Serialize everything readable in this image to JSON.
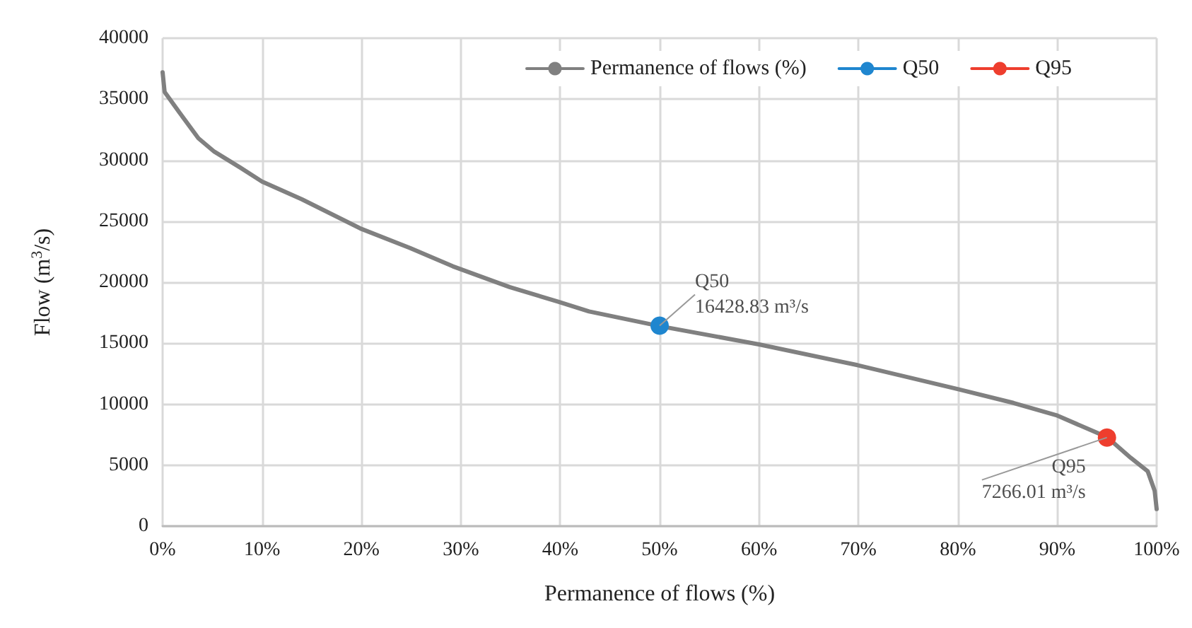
{
  "chart_data": {
    "type": "line",
    "xlabel": "Permanence of flows (%)",
    "ylabel": "Flow (m$^{3}$/s)",
    "series": [
      {
        "name": "Permanence of flows (%)",
        "color": "#808080",
        "marker": "none",
        "x": [
          0,
          0.2,
          1.7,
          3.6,
          5.2,
          7.8,
          10,
          14,
          19.9,
          24.9,
          29.2,
          34.9,
          39.8,
          42.9,
          50,
          60,
          69.9,
          79.9,
          85.6,
          89.9,
          95,
          97.4,
          99.1,
          99.8,
          100
        ],
        "values": [
          37200,
          35600,
          33900,
          31800,
          30700,
          29400,
          28250,
          26800,
          24400,
          22800,
          21300,
          19600,
          18400,
          17600,
          16400,
          14900,
          13200,
          11250,
          10100,
          9100,
          7300,
          5600,
          4500,
          2900,
          1400
        ]
      },
      {
        "name": "Q50",
        "color": "#1f86cf",
        "marker": "circle",
        "x": [
          50
        ],
        "values": [
          16428.83
        ]
      },
      {
        "name": "Q95",
        "color": "#ee3e2e",
        "marker": "circle",
        "x": [
          95
        ],
        "values": [
          7266.01
        ]
      }
    ],
    "annotations": [
      {
        "text": "Q50\n16428.83 m³/s",
        "x": 50,
        "y": 16428.83
      },
      {
        "text": "Q95\n7266.01 m³/s",
        "x": 95,
        "y": 7266.01
      }
    ],
    "xlim": [
      0,
      100
    ],
    "xticks": [
      {
        "value": 0,
        "label": "0%"
      },
      {
        "value": 10,
        "label": "10%"
      },
      {
        "value": 20,
        "label": "20%"
      },
      {
        "value": 30,
        "label": "30%"
      },
      {
        "value": 40,
        "label": "40%"
      },
      {
        "value": 50,
        "label": "50%"
      },
      {
        "value": 60,
        "label": "60%"
      },
      {
        "value": 70,
        "label": "70%"
      },
      {
        "value": 80,
        "label": "80%"
      },
      {
        "value": 90,
        "label": "90%"
      },
      {
        "value": 100,
        "label": "100%"
      }
    ],
    "ylim": [
      0,
      40000
    ],
    "yticks": [
      0,
      5000,
      10000,
      15000,
      20000,
      25000,
      30000,
      35000,
      40000
    ],
    "grid": true,
    "legend": "top right",
    "line_style": "solid"
  }
}
